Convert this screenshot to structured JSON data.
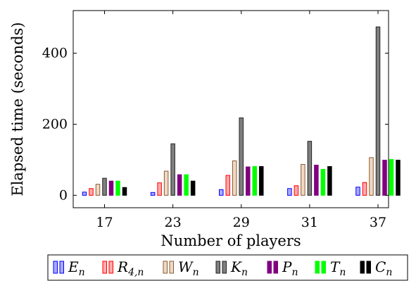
{
  "chart_data": {
    "type": "bar",
    "title": "",
    "xlabel": "Number of players",
    "ylabel": "Elapsed time (seconds)",
    "categories": [
      "17",
      "23",
      "29",
      "31",
      "37"
    ],
    "ylim": [
      -35,
      520
    ],
    "yticks": [
      0,
      200,
      400
    ],
    "grid": false,
    "legend_position": "bottom",
    "series": [
      {
        "name": "E",
        "subscript": "n",
        "color": "#aaaaff",
        "stroke": "#0000ff",
        "values": [
          9,
          8,
          16,
          19,
          23
        ]
      },
      {
        "name": "R",
        "subscript": "4,n",
        "color": "#ffaaaa",
        "stroke": "#ff0000",
        "values": [
          19,
          35,
          56,
          27,
          36
        ]
      },
      {
        "name": "W",
        "subscript": "n",
        "color": "#efd9c4",
        "stroke": "#8a5a32",
        "values": [
          31,
          68,
          97,
          87,
          106
        ]
      },
      {
        "name": "K",
        "subscript": "n",
        "color": "#7f7f7f",
        "stroke": "#222222",
        "values": [
          48,
          145,
          218,
          152,
          474
        ]
      },
      {
        "name": "P",
        "subscript": "n",
        "color": "#800080",
        "stroke": "#800080",
        "values": [
          40,
          58,
          80,
          85,
          99
        ]
      },
      {
        "name": "T",
        "subscript": "n",
        "color": "#00ff00",
        "stroke": "#00ff00",
        "values": [
          40,
          58,
          81,
          73,
          101
        ]
      },
      {
        "name": "C",
        "subscript": "n",
        "color": "#000000",
        "stroke": "#000000",
        "values": [
          22,
          40,
          81,
          81,
          99
        ]
      }
    ]
  }
}
